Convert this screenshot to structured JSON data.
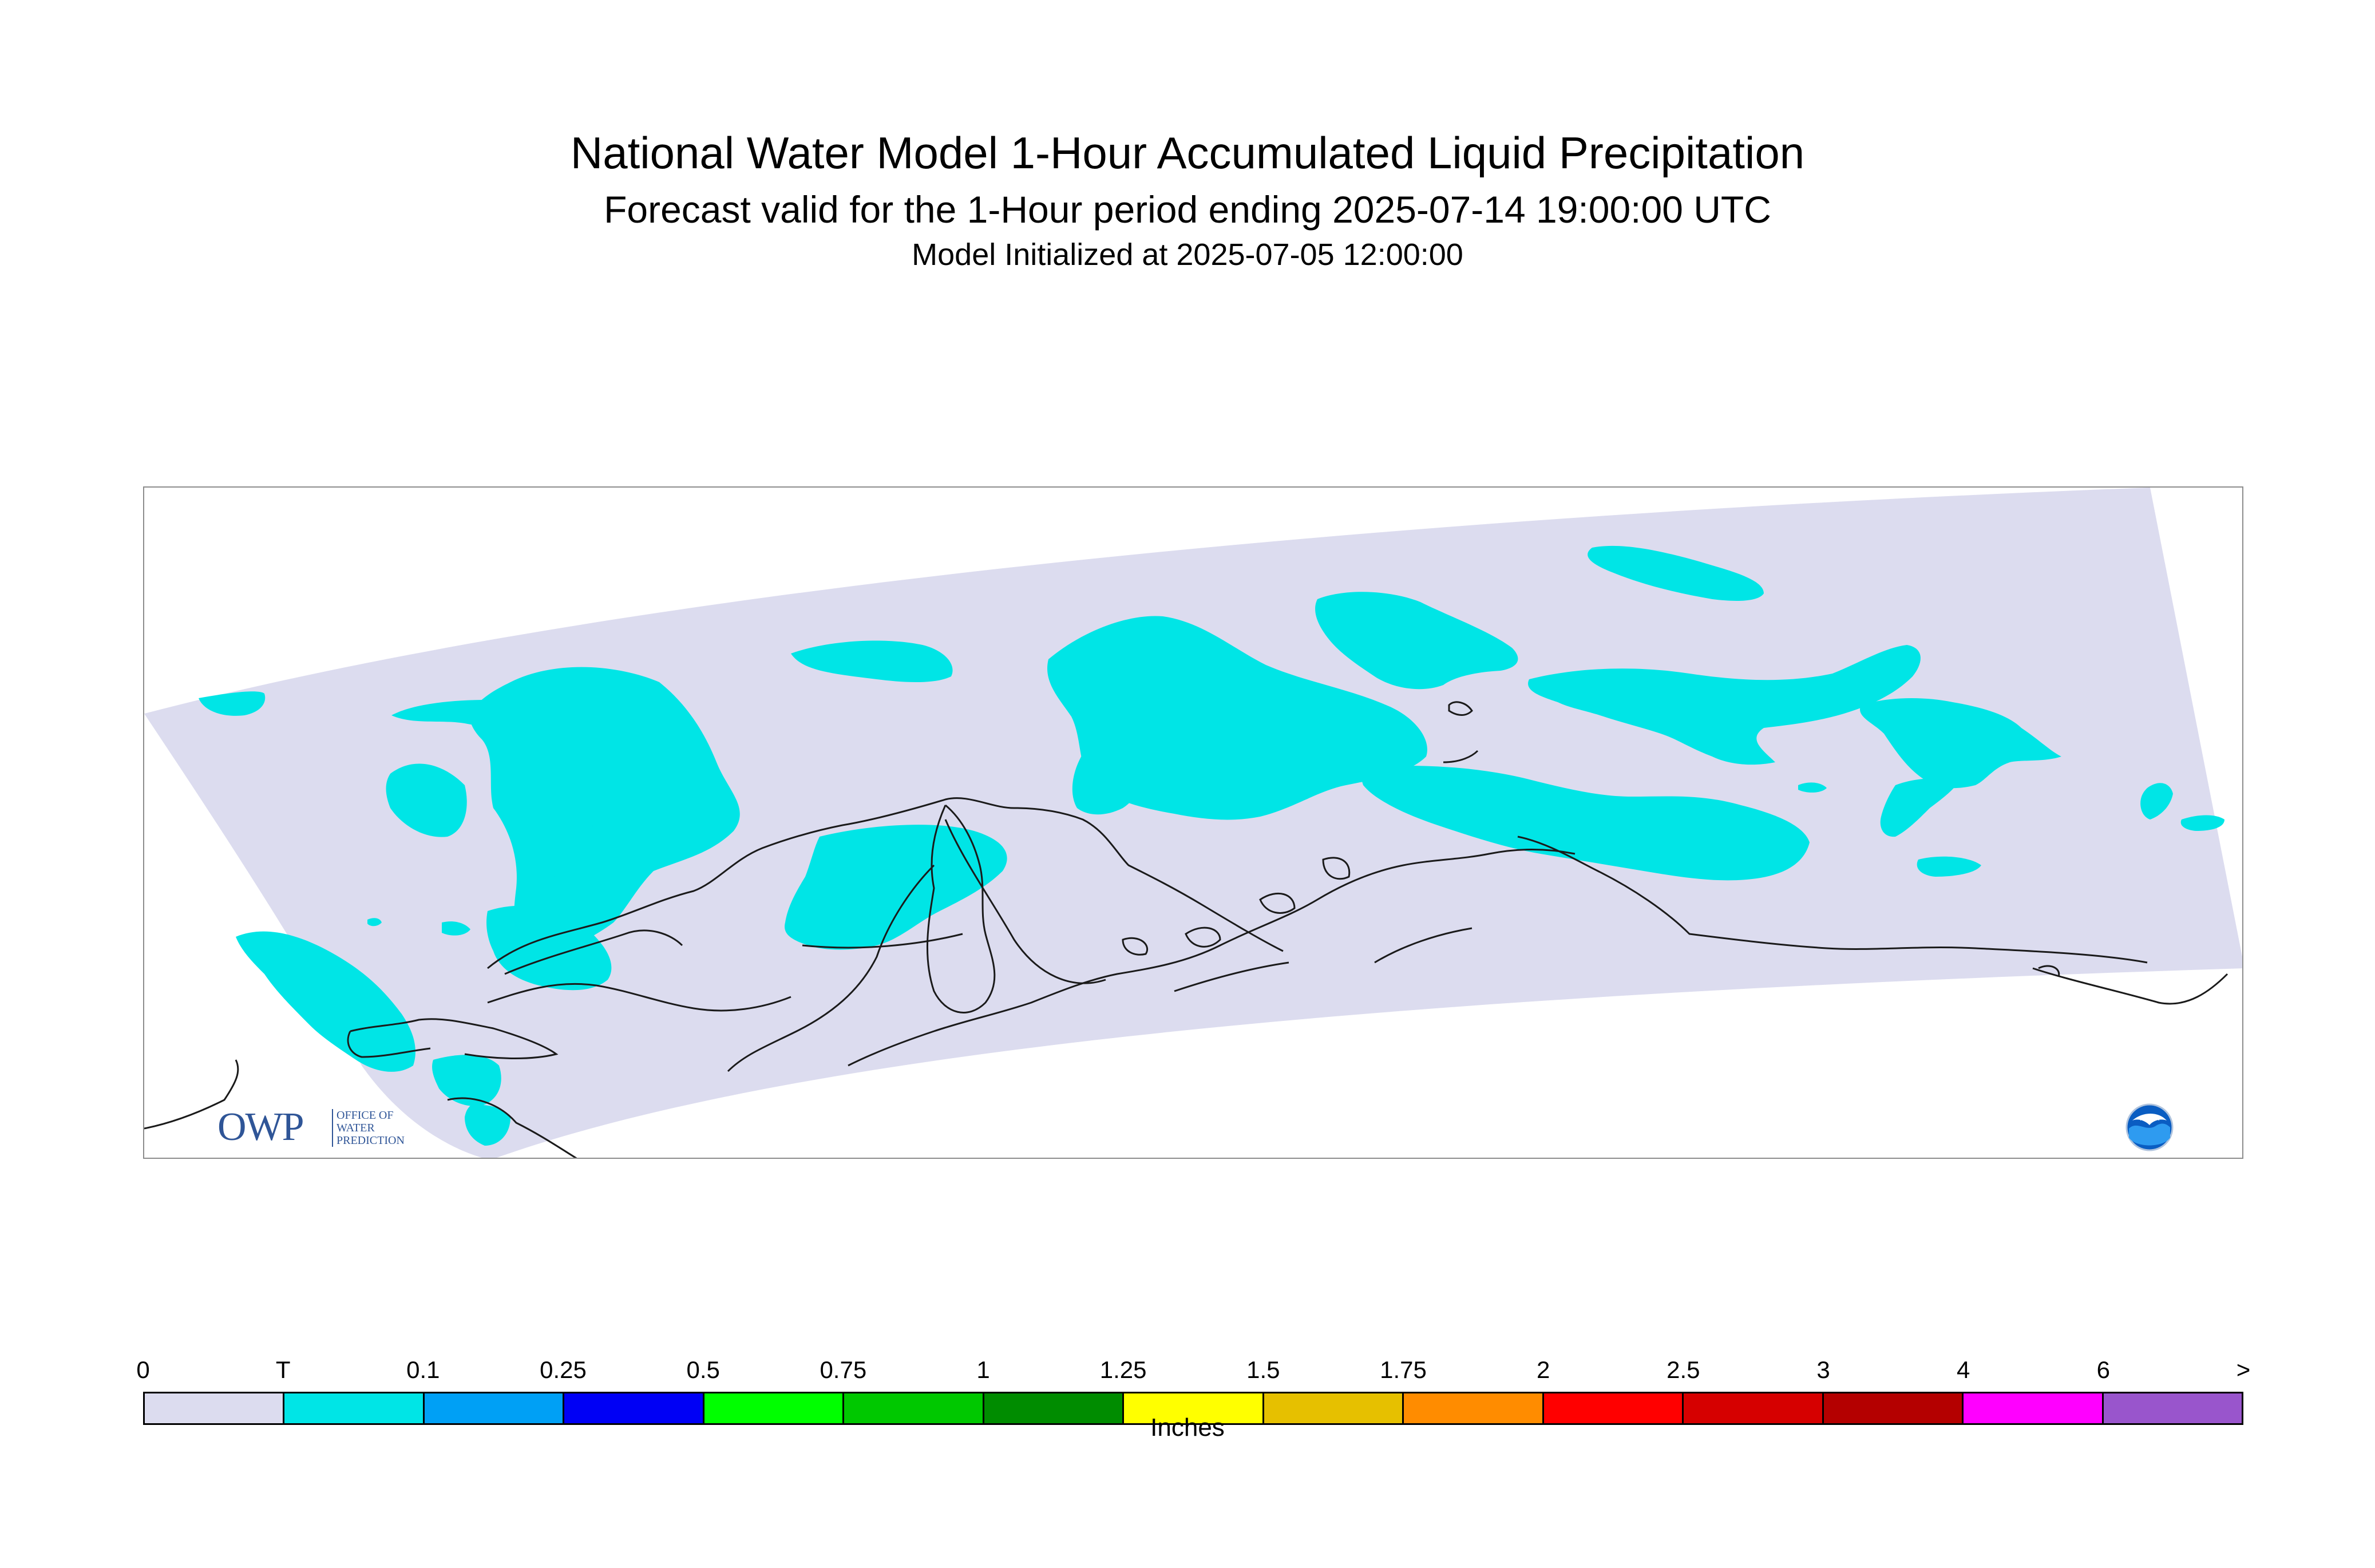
{
  "header": {
    "title": "National Water Model 1-Hour Accumulated Liquid Precipitation",
    "subtitle": "Forecast valid for the 1-Hour period ending 2025-07-14 19:00:00 UTC",
    "init_line": "Model Initialized at 2025-07-05 12:00:00"
  },
  "logos": {
    "owp_mark": "OWP",
    "owp_lines": [
      "OFFICE OF",
      "WATER",
      "PREDICTION"
    ],
    "noaa": "NOAA"
  },
  "colors": {
    "domain_fill": "#dcdcef",
    "trace_fill": "#00e5e6",
    "coastline": "#1a1a1a",
    "frame": "#8c8c8c"
  },
  "legend": {
    "units": "Inches",
    "tick_labels": [
      "0",
      "T",
      "0.1",
      "0.25",
      "0.5",
      "0.75",
      "1",
      "1.25",
      "1.5",
      "1.75",
      "2",
      "2.5",
      "3",
      "4",
      "6",
      ">"
    ],
    "swatch_colors": [
      "#dcdcef",
      "#00e5e6",
      "#00a0f5",
      "#0000f5",
      "#00ff00",
      "#00c800",
      "#008c00",
      "#ffff00",
      "#e6c000",
      "#ff8c00",
      "#ff0000",
      "#d60000",
      "#b40000",
      "#ff00ff",
      "#9955cc"
    ]
  }
}
